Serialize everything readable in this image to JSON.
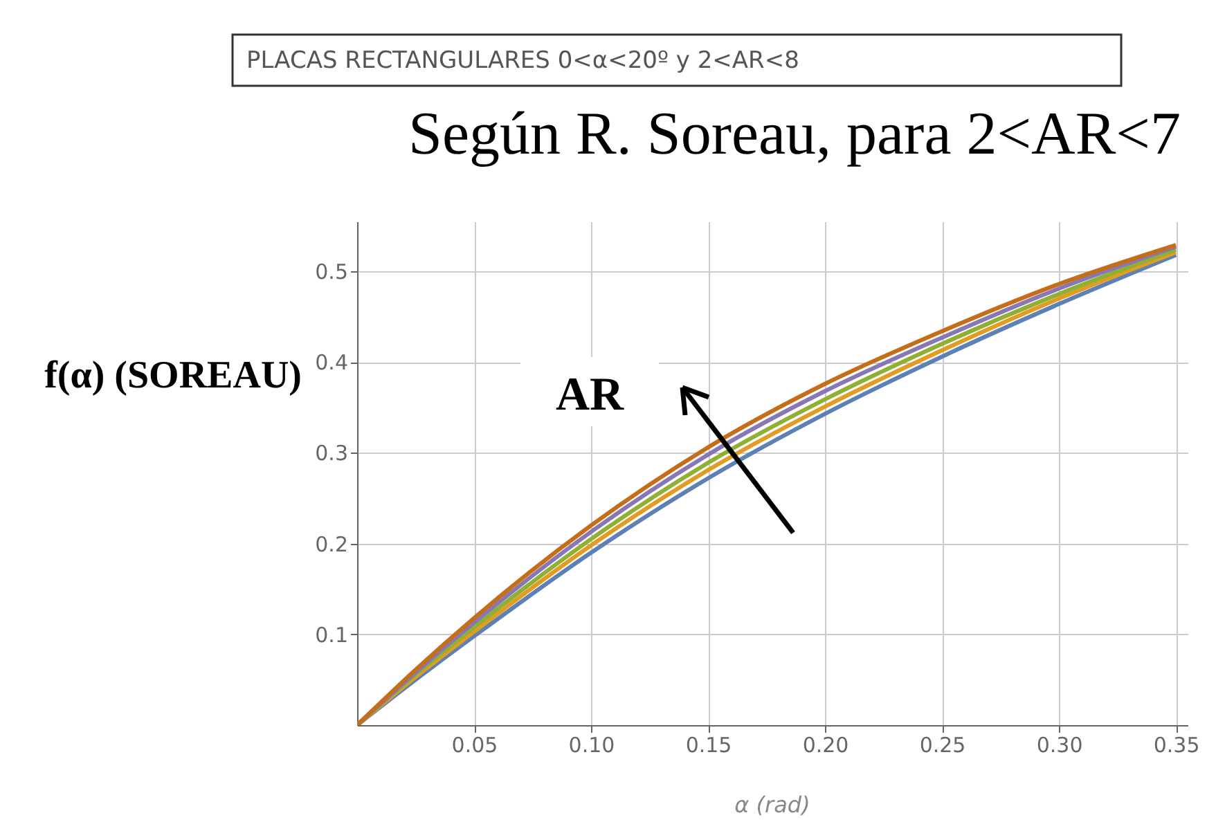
{
  "chart_data": {
    "type": "line",
    "title": "PLACAS RECTANGULARES 0<α<20º y 2<AR<8",
    "subtitle": "Según R. Soreau, para 2<AR<7",
    "xlabel": "α (rad)",
    "ylabel": "f(α) (SOREAU)",
    "x": [
      0,
      0.025,
      0.05,
      0.1,
      0.15,
      0.2,
      0.25,
      0.3,
      0.35
    ],
    "series": [
      {
        "color": "#5e81b5",
        "values": [
          0,
          0.05,
          0.098,
          0.19,
          0.272,
          0.343,
          0.406,
          0.464,
          0.518
        ]
      },
      {
        "color": "#e19c24",
        "values": [
          0,
          0.053,
          0.103,
          0.198,
          0.281,
          0.351,
          0.413,
          0.47,
          0.521
        ]
      },
      {
        "color": "#8fb032",
        "values": [
          0,
          0.056,
          0.108,
          0.205,
          0.289,
          0.359,
          0.42,
          0.475,
          0.524
        ]
      },
      {
        "color": "#8778b3",
        "values": [
          0,
          0.058,
          0.113,
          0.213,
          0.298,
          0.368,
          0.427,
          0.481,
          0.527
        ]
      },
      {
        "color": "#c56e1a",
        "values": [
          0,
          0.061,
          0.118,
          0.22,
          0.306,
          0.376,
          0.434,
          0.486,
          0.529
        ]
      }
    ],
    "annotations": [
      "AR"
    ],
    "xlim": [
      0,
      0.355
    ],
    "ylim": [
      0,
      0.555
    ],
    "xticks": [
      0.05,
      {
        "value": 0.1,
        "label": "0.10"
      },
      0.15,
      {
        "value": 0.2,
        "label": "0.20"
      },
      0.25,
      {
        "value": 0.3,
        "label": "0.30"
      },
      0.35
    ],
    "yticks": [
      0.1,
      0.2,
      0.3,
      0.4,
      0.5
    ],
    "grid": true,
    "line_style": "solid"
  }
}
